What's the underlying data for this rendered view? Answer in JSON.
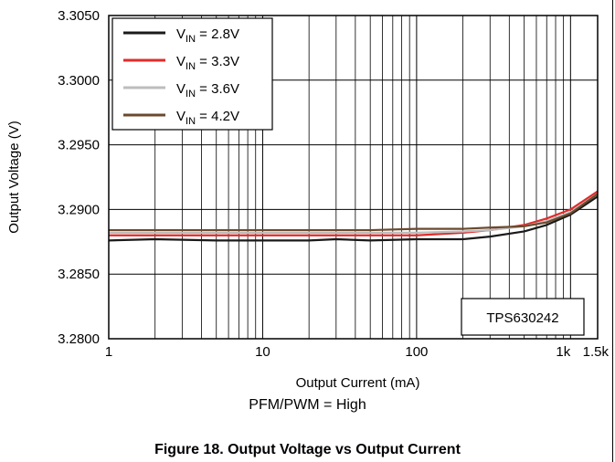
{
  "chart_data": {
    "type": "line",
    "xlabel": "Output Current (mA)",
    "ylabel": "Output Voltage (V)",
    "x_scale": "log",
    "xlim": [
      1,
      1500
    ],
    "ylim": [
      3.28,
      3.305
    ],
    "x_ticks": [
      {
        "value": 1,
        "label": "1"
      },
      {
        "value": 10,
        "label": "10"
      },
      {
        "value": 100,
        "label": "100"
      },
      {
        "value": 1000,
        "label": "1k"
      },
      {
        "value": 1500,
        "label": "1.5k"
      }
    ],
    "y_ticks": [
      {
        "value": 3.28,
        "label": "3.2800"
      },
      {
        "value": 3.285,
        "label": "3.2850"
      },
      {
        "value": 3.29,
        "label": "3.2900"
      },
      {
        "value": 3.295,
        "label": "3.2950"
      },
      {
        "value": 3.3,
        "label": "3.3000"
      },
      {
        "value": 3.305,
        "label": "3.3050"
      }
    ],
    "grid": true,
    "legend_position": "top-left",
    "annotation": "TPS630242",
    "series": [
      {
        "name": "VIN = 2.8V",
        "legend_main": "V",
        "legend_sub": "IN",
        "legend_rest": " = 2.8V",
        "color": "#1a1a1a",
        "x": [
          1,
          2,
          5,
          10,
          20,
          30,
          50,
          100,
          200,
          300,
          500,
          700,
          1000,
          1500
        ],
        "y": [
          3.2876,
          3.2877,
          3.2876,
          3.2876,
          3.2876,
          3.2877,
          3.2876,
          3.2877,
          3.2877,
          3.2879,
          3.2883,
          3.2888,
          3.2896,
          3.291
        ]
      },
      {
        "name": "VIN = 3.3V",
        "legend_main": "V",
        "legend_sub": "IN",
        "legend_rest": " = 3.3V",
        "color": "#e02b2b",
        "x": [
          1,
          2,
          5,
          10,
          20,
          30,
          50,
          100,
          200,
          300,
          500,
          700,
          1000,
          1500
        ],
        "y": [
          3.288,
          3.288,
          3.288,
          3.288,
          3.288,
          3.288,
          3.288,
          3.288,
          3.2882,
          3.2884,
          3.2888,
          3.2893,
          3.29,
          3.2914
        ]
      },
      {
        "name": "VIN = 3.6V",
        "legend_main": "V",
        "legend_sub": "IN",
        "legend_rest": " = 3.6V",
        "color": "#bdbdbd",
        "x": [
          1,
          2,
          5,
          10,
          20,
          30,
          50,
          100,
          200,
          300,
          500,
          700,
          1000,
          1500
        ],
        "y": [
          3.2882,
          3.2882,
          3.2882,
          3.2882,
          3.2882,
          3.2882,
          3.2882,
          3.2882,
          3.2883,
          3.2884,
          3.2887,
          3.2891,
          3.2898,
          3.2912
        ]
      },
      {
        "name": "VIN = 4.2V",
        "legend_main": "V",
        "legend_sub": "IN",
        "legend_rest": " = 4.2V",
        "color": "#6b4a2e",
        "x": [
          1,
          2,
          5,
          10,
          20,
          30,
          50,
          100,
          200,
          300,
          500,
          700,
          1000,
          1500
        ],
        "y": [
          3.2884,
          3.2884,
          3.2884,
          3.2884,
          3.2884,
          3.2884,
          3.2884,
          3.2885,
          3.2885,
          3.2886,
          3.2887,
          3.289,
          3.2897,
          3.2912
        ]
      }
    ]
  },
  "condition_text": "PFM/PWM = High",
  "caption": "Figure 18. Output Voltage vs Output Current"
}
